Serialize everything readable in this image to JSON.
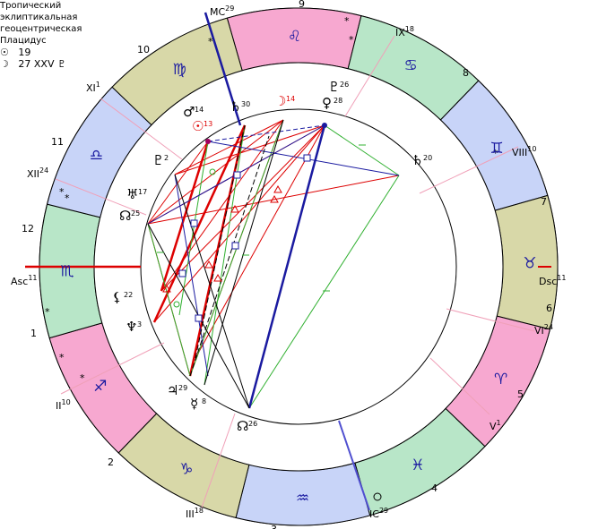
{
  "info": {
    "lines": [
      "Тропический",
      "эклиптикальная",
      "геоцентрическая",
      "Плацидус"
    ],
    "sun_symbol": "☉",
    "sun_value": "19",
    "moon_symbol": "☽",
    "moon_value": "27 XXV",
    "moon_extra_symbol": "♇"
  },
  "houses": {
    "numbers": [
      "1",
      "2",
      "3",
      "4",
      "5",
      "6",
      "7",
      "8",
      "9",
      "10",
      "11",
      "12"
    ],
    "cusps": {
      "mc": {
        "name": "MC",
        "deg": "29"
      },
      "ic": {
        "name": "IC",
        "deg": "29"
      },
      "asc": {
        "name": "Asc",
        "deg": "11"
      },
      "dsc": {
        "name": "Dsc",
        "deg": "11"
      },
      "xi": {
        "name": "XI",
        "deg": "1"
      },
      "xii": {
        "name": "XII",
        "deg": "24"
      },
      "ii": {
        "name": "II",
        "deg": "10"
      },
      "iii": {
        "name": "III",
        "deg": "18"
      },
      "v": {
        "name": "V",
        "deg": "1"
      },
      "vi": {
        "name": "VI",
        "deg": "24"
      },
      "viii": {
        "name": "VIII",
        "deg": "10"
      },
      "ix": {
        "name": "IX",
        "deg": "18"
      }
    }
  },
  "zodiac": [
    {
      "glyph": "♌",
      "color": "#f7a8d0"
    },
    {
      "glyph": "♋",
      "color": "#b8e6c8"
    },
    {
      "glyph": "♊",
      "color": "#c8d4f8"
    },
    {
      "glyph": "♉",
      "color": "#d8d8a8"
    },
    {
      "glyph": "♈",
      "color": "#f7a8d0"
    },
    {
      "glyph": "♓",
      "color": "#b8e6c8"
    },
    {
      "glyph": "♒",
      "color": "#c8d4f8"
    },
    {
      "glyph": "♑",
      "color": "#d8d8a8"
    },
    {
      "glyph": "♐",
      "color": "#f7a8d0"
    },
    {
      "glyph": "♏",
      "color": "#b8e6c8"
    },
    {
      "glyph": "♎",
      "color": "#c8d4f8"
    },
    {
      "glyph": "♍",
      "color": "#d8d8a8"
    }
  ],
  "planets": [
    {
      "key": "moon",
      "glyph": "☽",
      "deg": "14",
      "color": "#dd0000"
    },
    {
      "key": "sun",
      "glyph": "☉",
      "deg": "13",
      "color": "#dd0000"
    },
    {
      "key": "mars",
      "glyph": "♂",
      "deg": "14",
      "color": "#000000"
    },
    {
      "key": "saturn",
      "glyph": "♄",
      "deg": "30",
      "color": "#000000"
    },
    {
      "key": "pluto",
      "glyph": "♇",
      "deg": "26",
      "color": "#000000"
    },
    {
      "key": "venus",
      "glyph": "♀",
      "deg": "28",
      "color": "#000000"
    },
    {
      "key": "saturn2",
      "glyph": "♄",
      "deg": "20",
      "color": "#000000"
    },
    {
      "key": "pluto2",
      "glyph": "♇",
      "deg": "2",
      "color": "#000000"
    },
    {
      "key": "uranus",
      "glyph": "♅",
      "deg": "17",
      "color": "#000000"
    },
    {
      "key": "node2",
      "glyph": "☊",
      "deg": "25",
      "color": "#000000"
    },
    {
      "key": "lilith",
      "glyph": "⚸",
      "deg": "22",
      "color": "#000000"
    },
    {
      "key": "neptune",
      "glyph": "♆",
      "deg": "3",
      "color": "#000000"
    },
    {
      "key": "jupiter",
      "glyph": "♃",
      "deg": "29",
      "color": "#000000"
    },
    {
      "key": "mercury",
      "glyph": "☿",
      "deg": "8",
      "color": "#000000"
    },
    {
      "key": "node",
      "glyph": "☊",
      "deg": "26",
      "color": "#000000"
    }
  ]
}
